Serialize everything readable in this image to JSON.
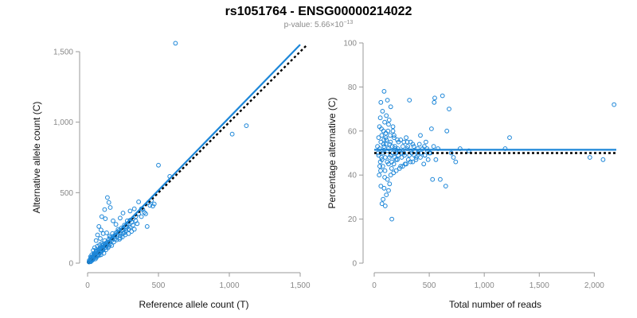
{
  "figure": {
    "title": "rs1051764 - ENSG00000214022",
    "pvalue_prefix": "p-value: 5.66×10",
    "pvalue_exponent": "−13"
  },
  "colors": {
    "points": "#1c86d8",
    "fit_line": "#1c86d8",
    "reference_line": "#000000",
    "axis": "#999999",
    "tick_text": "#888888"
  },
  "chart_data": [
    {
      "type": "scatter",
      "id": "counts",
      "xlabel": "Reference allele count (T)",
      "ylabel": "Alternative allele count (C)",
      "xlim": [
        0,
        1500
      ],
      "ylim": [
        0,
        1500
      ],
      "xticks": [
        0,
        500,
        1000,
        1500
      ],
      "xtick_labels": [
        "0",
        "500",
        "1,000",
        "1,500"
      ],
      "yticks": [
        0,
        500,
        1000,
        1500
      ],
      "ytick_labels": [
        "0",
        "500",
        "1,000",
        "1,500"
      ],
      "fit_line": {
        "x": [
          0,
          1500
        ],
        "y": [
          0,
          1550
        ]
      },
      "reference_line": {
        "x": [
          0,
          1550
        ],
        "y": [
          0,
          1550
        ]
      },
      "points": [
        [
          620,
          1560
        ],
        [
          1120,
          975
        ],
        [
          1020,
          915
        ],
        [
          500,
          695
        ],
        [
          580,
          615
        ],
        [
          360,
          435
        ],
        [
          330,
          385
        ],
        [
          300,
          370
        ],
        [
          250,
          355
        ],
        [
          230,
          320
        ],
        [
          280,
          300
        ],
        [
          140,
          465
        ],
        [
          150,
          430
        ],
        [
          120,
          380
        ],
        [
          160,
          395
        ],
        [
          100,
          330
        ],
        [
          125,
          315
        ],
        [
          180,
          300
        ],
        [
          200,
          275
        ],
        [
          215,
          240
        ],
        [
          270,
          245
        ],
        [
          420,
          260
        ],
        [
          350,
          280
        ],
        [
          470,
          420
        ],
        [
          80,
          260
        ],
        [
          95,
          235
        ],
        [
          70,
          200
        ],
        [
          110,
          210
        ],
        [
          135,
          215
        ],
        [
          155,
          190
        ],
        [
          175,
          210
        ],
        [
          190,
          185
        ],
        [
          230,
          195
        ],
        [
          60,
          160
        ],
        [
          90,
          175
        ],
        [
          120,
          160
        ],
        [
          100,
          140
        ],
        [
          140,
          150
        ],
        [
          160,
          135
        ],
        [
          50,
          110
        ],
        [
          70,
          120
        ],
        [
          85,
          105
        ],
        [
          110,
          115
        ],
        [
          130,
          95
        ],
        [
          40,
          90
        ],
        [
          60,
          80
        ],
        [
          80,
          70
        ],
        [
          100,
          85
        ],
        [
          30,
          60
        ],
        [
          45,
          55
        ],
        [
          65,
          50
        ],
        [
          25,
          40
        ],
        [
          40,
          35
        ],
        [
          55,
          30
        ],
        [
          20,
          25
        ],
        [
          30,
          18
        ],
        [
          15,
          12
        ],
        [
          10,
          8
        ],
        [
          35,
          45
        ],
        [
          75,
          90
        ],
        [
          95,
          60
        ],
        [
          115,
          70
        ],
        [
          145,
          110
        ],
        [
          170,
          125
        ],
        [
          185,
          150
        ],
        [
          205,
          165
        ],
        [
          225,
          170
        ],
        [
          245,
          185
        ],
        [
          265,
          200
        ],
        [
          290,
          210
        ],
        [
          310,
          225
        ],
        [
          330,
          240
        ],
        [
          150,
          170
        ],
        [
          170,
          160
        ],
        [
          200,
          215
        ],
        [
          240,
          230
        ],
        [
          260,
          215
        ],
        [
          300,
          255
        ],
        [
          320,
          270
        ],
        [
          60,
          95
        ],
        [
          45,
          70
        ],
        [
          85,
          130
        ],
        [
          105,
          125
        ],
        [
          125,
          140
        ],
        [
          55,
          65
        ],
        [
          75,
          60
        ],
        [
          20,
          45
        ],
        [
          28,
          30
        ],
        [
          48,
          48
        ],
        [
          68,
          72
        ],
        [
          88,
          88
        ],
        [
          108,
          100
        ],
        [
          18,
          15
        ],
        [
          22,
          10
        ],
        [
          12,
          20
        ],
        [
          38,
          25
        ],
        [
          42,
          52
        ],
        [
          62,
          40
        ],
        [
          82,
          55
        ],
        [
          92,
          110
        ],
        [
          112,
          135
        ],
        [
          132,
          125
        ],
        [
          152,
          150
        ],
        [
          172,
          175
        ],
        [
          192,
          170
        ],
        [
          212,
          200
        ],
        [
          232,
          215
        ],
        [
          252,
          235
        ],
        [
          272,
          260
        ],
        [
          292,
          270
        ],
        [
          312,
          290
        ],
        [
          340,
          300
        ],
        [
          380,
          330
        ],
        [
          400,
          360
        ],
        [
          440,
          410
        ],
        [
          460,
          405
        ],
        [
          390,
          380
        ],
        [
          410,
          350
        ],
        [
          230,
          180
        ],
        [
          250,
          210
        ],
        [
          270,
          230
        ],
        [
          290,
          240
        ],
        [
          150,
          120
        ],
        [
          130,
          110
        ],
        [
          110,
          95
        ],
        [
          90,
          75
        ],
        [
          70,
          55
        ],
        [
          50,
          40
        ],
        [
          30,
          25
        ],
        [
          25,
          35
        ],
        [
          35,
          40
        ],
        [
          45,
          60
        ],
        [
          55,
          50
        ],
        [
          65,
          85
        ],
        [
          75,
          80
        ],
        [
          85,
          95
        ],
        [
          95,
          100
        ],
        [
          105,
          105
        ],
        [
          115,
          120
        ],
        [
          125,
          130
        ],
        [
          135,
          140
        ],
        [
          145,
          130
        ],
        [
          160,
          180
        ],
        [
          180,
          190
        ],
        [
          195,
          200
        ],
        [
          210,
          220
        ],
        [
          220,
          230
        ],
        [
          240,
          250
        ],
        [
          260,
          270
        ],
        [
          280,
          280
        ],
        [
          300,
          305
        ],
        [
          320,
          315
        ],
        [
          340,
          330
        ],
        [
          360,
          350
        ],
        [
          380,
          385
        ],
        [
          430,
          430
        ],
        [
          450,
          445
        ]
      ]
    },
    {
      "type": "scatter",
      "id": "percentage",
      "xlabel": "Total number of reads",
      "ylabel": "Percentage alternative (C)",
      "xlim": [
        0,
        2200
      ],
      "ylim": [
        0,
        100
      ],
      "xticks": [
        0,
        500,
        1000,
        1500,
        2000
      ],
      "xtick_labels": [
        "0",
        "500",
        "1,000",
        "1,500",
        "2,000"
      ],
      "yticks": [
        0,
        20,
        40,
        60,
        80,
        100
      ],
      "ytick_labels": [
        "0",
        "20",
        "40",
        "60",
        "80",
        "100"
      ],
      "fit_line": {
        "x": [
          0,
          2200
        ],
        "y": [
          51.5,
          51.5
        ]
      },
      "reference_line": {
        "x": [
          0,
          2200
        ],
        "y": [
          50,
          50
        ]
      },
      "points": [
        [
          2180,
          72
        ],
        [
          2080,
          47
        ],
        [
          1960,
          48
        ],
        [
          1230,
          57
        ],
        [
          1190,
          52
        ],
        [
          860,
          51
        ],
        [
          780,
          52
        ],
        [
          740,
          46
        ],
        [
          720,
          48
        ],
        [
          700,
          50
        ],
        [
          660,
          60
        ],
        [
          620,
          76
        ],
        [
          580,
          52
        ],
        [
          560,
          47
        ],
        [
          540,
          53
        ],
        [
          530,
          38
        ],
        [
          520,
          61
        ],
        [
          500,
          50
        ],
        [
          490,
          47
        ],
        [
          480,
          52
        ],
        [
          470,
          55
        ],
        [
          460,
          49
        ],
        [
          450,
          45
        ],
        [
          440,
          52
        ],
        [
          420,
          58
        ],
        [
          400,
          50
        ],
        [
          380,
          48
        ],
        [
          370,
          51
        ],
        [
          360,
          53
        ],
        [
          350,
          46
        ],
        [
          340,
          50
        ],
        [
          330,
          55
        ],
        [
          320,
          49
        ],
        [
          310,
          47
        ],
        [
          300,
          52
        ],
        [
          290,
          57
        ],
        [
          280,
          45
        ],
        [
          270,
          50
        ],
        [
          260,
          53
        ],
        [
          250,
          48
        ],
        [
          240,
          44
        ],
        [
          230,
          51
        ],
        [
          220,
          55
        ],
        [
          210,
          47
        ],
        [
          200,
          50
        ],
        [
          190,
          52
        ],
        [
          180,
          58
        ],
        [
          170,
          60
        ],
        [
          160,
          46
        ],
        [
          150,
          49
        ],
        [
          140,
          54
        ],
        [
          130,
          45
        ],
        [
          120,
          51
        ],
        [
          110,
          56
        ],
        [
          100,
          48
        ],
        [
          90,
          53
        ],
        [
          80,
          50
        ],
        [
          70,
          47
        ],
        [
          60,
          55
        ],
        [
          50,
          52
        ],
        [
          40,
          49
        ],
        [
          30,
          53
        ],
        [
          550,
          75
        ],
        [
          545,
          73
        ],
        [
          320,
          74
        ],
        [
          120,
          74
        ],
        [
          90,
          78
        ],
        [
          60,
          73
        ],
        [
          150,
          71
        ],
        [
          680,
          70
        ],
        [
          75,
          69
        ],
        [
          110,
          67
        ],
        [
          55,
          66
        ],
        [
          95,
          64
        ],
        [
          130,
          63
        ],
        [
          170,
          62
        ],
        [
          65,
          61
        ],
        [
          85,
          60
        ],
        [
          105,
          59
        ],
        [
          145,
          58
        ],
        [
          180,
          57
        ],
        [
          210,
          56
        ],
        [
          240,
          56
        ],
        [
          270,
          55
        ],
        [
          300,
          55
        ],
        [
          350,
          54
        ],
        [
          410,
          54
        ],
        [
          600,
          38
        ],
        [
          650,
          35
        ],
        [
          160,
          20
        ],
        [
          100,
          26
        ],
        [
          70,
          27
        ],
        [
          80,
          29
        ],
        [
          110,
          31
        ],
        [
          130,
          33
        ],
        [
          90,
          34
        ],
        [
          60,
          35
        ],
        [
          140,
          36
        ],
        [
          120,
          38
        ],
        [
          95,
          39
        ],
        [
          150,
          40
        ],
        [
          175,
          41
        ],
        [
          200,
          42
        ],
        [
          230,
          43
        ],
        [
          260,
          44
        ],
        [
          290,
          45
        ],
        [
          330,
          46
        ],
        [
          380,
          47
        ],
        [
          420,
          48
        ],
        [
          460,
          49
        ],
        [
          510,
          50
        ],
        [
          45,
          40
        ],
        [
          50,
          44
        ],
        [
          55,
          46
        ],
        [
          65,
          48
        ],
        [
          75,
          51
        ],
        [
          85,
          54
        ],
        [
          105,
          57
        ],
        [
          125,
          60
        ],
        [
          135,
          65
        ],
        [
          165,
          53
        ],
        [
          185,
          48
        ],
        [
          215,
          52
        ],
        [
          245,
          50
        ],
        [
          275,
          49
        ],
        [
          305,
          53
        ],
        [
          335,
          51
        ],
        [
          365,
          49
        ],
        [
          395,
          52
        ],
        [
          425,
          50
        ],
        [
          455,
          53
        ],
        [
          485,
          51
        ],
        [
          40,
          57
        ],
        [
          35,
          50
        ],
        [
          48,
          62
        ],
        [
          58,
          42
        ],
        [
          68,
          58
        ],
        [
          78,
          44
        ],
        [
          88,
          56
        ],
        [
          98,
          42
        ],
        [
          108,
          54
        ],
        [
          118,
          46
        ],
        [
          128,
          52
        ],
        [
          138,
          48
        ],
        [
          148,
          55
        ],
        [
          158,
          43
        ],
        [
          168,
          50
        ],
        [
          178,
          45
        ],
        [
          188,
          53
        ],
        [
          198,
          47
        ],
        [
          208,
          51
        ],
        [
          218,
          49
        ]
      ]
    }
  ]
}
